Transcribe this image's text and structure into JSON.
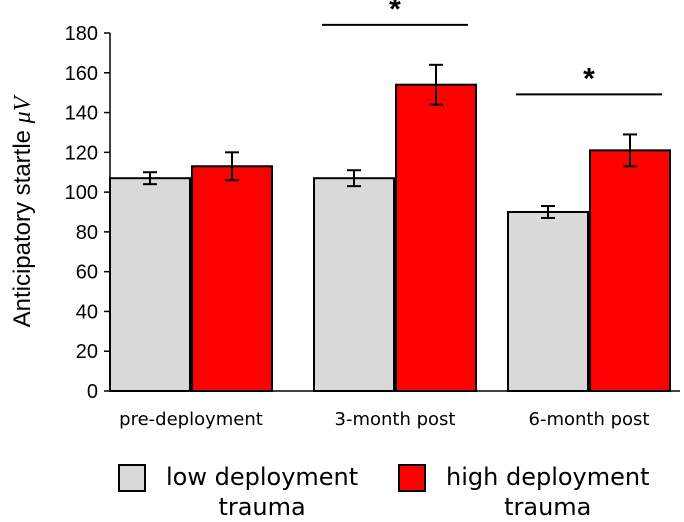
{
  "chart_data": {
    "type": "bar",
    "title": "",
    "xlabel": "",
    "ylabel": "Anticipatory startle",
    "ylabel_unit": "μV",
    "ylim": [
      0,
      180
    ],
    "yticks": [
      0,
      20,
      40,
      60,
      80,
      100,
      120,
      140,
      160,
      180
    ],
    "categories": [
      "pre-deployment",
      "3-month post",
      "6-month post"
    ],
    "series": [
      {
        "name": "low deployment trauma",
        "color": "#d9d9d9",
        "values": [
          107,
          107,
          90
        ],
        "errors": [
          3,
          4,
          3
        ]
      },
      {
        "name": "high deployment trauma",
        "color": "#ff0000",
        "values": [
          113,
          154,
          121
        ],
        "errors": [
          7,
          10,
          8
        ]
      }
    ],
    "significance": [
      {
        "category": "3-month post",
        "label": "*"
      },
      {
        "category": "6-month post",
        "label": "*"
      }
    ],
    "legend": {
      "position": "bottom",
      "items": [
        {
          "line1": "low deployment",
          "line2": "trauma",
          "color": "#d9d9d9"
        },
        {
          "line1": "high deployment",
          "line2": "trauma",
          "color": "#ff0000"
        }
      ]
    }
  }
}
